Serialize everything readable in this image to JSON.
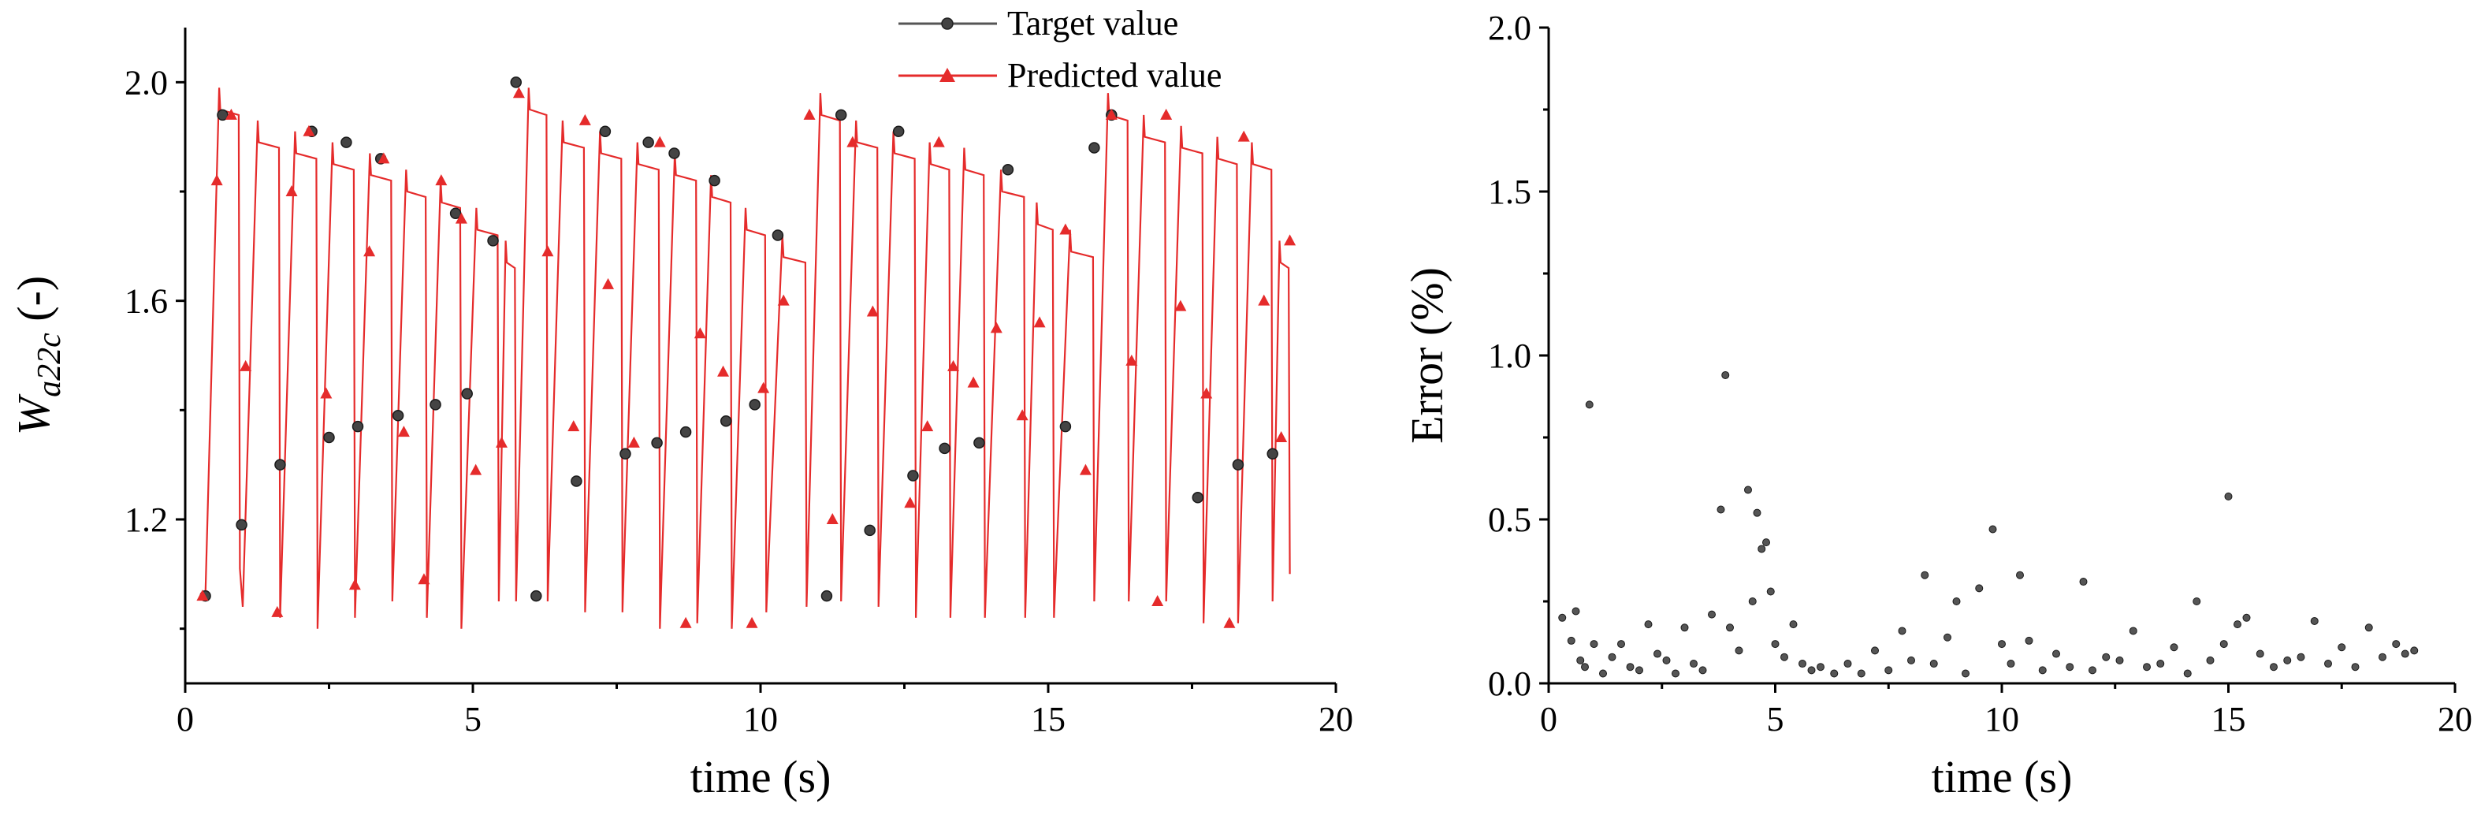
{
  "chart_data": [
    {
      "type": "line",
      "xlabel": "time (s)",
      "ylabel": {
        "base": "W",
        "sub": "a22c",
        "suffix": " (-)"
      },
      "xlim": [
        0,
        20
      ],
      "ylim": [
        0.9,
        2.1
      ],
      "xticks": [
        0,
        5,
        10,
        15,
        20
      ],
      "xtick_labels": [
        "0",
        "5",
        "10",
        "15",
        "20"
      ],
      "yticks": [
        1.2,
        1.6,
        2.0
      ],
      "ytick_labels": [
        "1.2",
        "1.6",
        "2.0"
      ],
      "legend": {
        "position": "top-center",
        "entries": [
          "Target value",
          "Predicted value"
        ]
      },
      "colors": {
        "target": "#555555",
        "predicted": "#e52b2b"
      },
      "cycles": [
        {
          "t0": 0.35,
          "lo": 1.06,
          "hi": 1.99,
          "t1": 0.95
        },
        {
          "t0": 1.0,
          "lo": 1.04,
          "hi": 1.93,
          "t1": 1.65
        },
        {
          "t0": 1.65,
          "lo": 1.02,
          "hi": 1.91,
          "t1": 2.3
        },
        {
          "t0": 2.3,
          "lo": 1.0,
          "hi": 1.89,
          "t1": 2.95
        },
        {
          "t0": 2.95,
          "lo": 1.02,
          "hi": 1.87,
          "t1": 3.6
        },
        {
          "t0": 3.6,
          "lo": 1.05,
          "hi": 1.84,
          "t1": 4.2
        },
        {
          "t0": 4.2,
          "lo": 1.02,
          "hi": 1.82,
          "t1": 4.8
        },
        {
          "t0": 4.8,
          "lo": 1.0,
          "hi": 1.77,
          "t1": 5.45
        },
        {
          "t0": 5.45,
          "lo": 1.05,
          "hi": 1.71,
          "t1": 5.75
        },
        {
          "t0": 5.75,
          "lo": 1.05,
          "hi": 1.99,
          "t1": 6.3
        },
        {
          "t0": 6.3,
          "lo": 1.05,
          "hi": 1.93,
          "t1": 6.95
        },
        {
          "t0": 6.95,
          "lo": 1.03,
          "hi": 1.91,
          "t1": 7.6
        },
        {
          "t0": 7.6,
          "lo": 1.03,
          "hi": 1.89,
          "t1": 8.25
        },
        {
          "t0": 8.25,
          "lo": 1.0,
          "hi": 1.87,
          "t1": 8.9
        },
        {
          "t0": 8.9,
          "lo": 1.01,
          "hi": 1.83,
          "t1": 9.5
        },
        {
          "t0": 9.5,
          "lo": 1.0,
          "hi": 1.77,
          "t1": 10.1
        },
        {
          "t0": 10.1,
          "lo": 1.03,
          "hi": 1.72,
          "t1": 10.8
        },
        {
          "t0": 10.8,
          "lo": 1.04,
          "hi": 1.98,
          "t1": 11.4
        },
        {
          "t0": 11.4,
          "lo": 1.05,
          "hi": 1.93,
          "t1": 12.05
        },
        {
          "t0": 12.05,
          "lo": 1.04,
          "hi": 1.91,
          "t1": 12.7
        },
        {
          "t0": 12.7,
          "lo": 1.02,
          "hi": 1.89,
          "t1": 13.3
        },
        {
          "t0": 13.3,
          "lo": 1.02,
          "hi": 1.88,
          "t1": 13.9
        },
        {
          "t0": 13.9,
          "lo": 1.02,
          "hi": 1.84,
          "t1": 14.6
        },
        {
          "t0": 14.6,
          "lo": 1.02,
          "hi": 1.78,
          "t1": 15.1
        },
        {
          "t0": 15.1,
          "lo": 1.02,
          "hi": 1.73,
          "t1": 15.8
        },
        {
          "t0": 15.8,
          "lo": 1.05,
          "hi": 1.98,
          "t1": 16.4
        },
        {
          "t0": 16.4,
          "lo": 1.05,
          "hi": 1.94,
          "t1": 17.05
        },
        {
          "t0": 17.05,
          "lo": 1.05,
          "hi": 1.92,
          "t1": 17.7
        },
        {
          "t0": 17.7,
          "lo": 1.01,
          "hi": 1.9,
          "t1": 18.3
        },
        {
          "t0": 18.3,
          "lo": 1.01,
          "hi": 1.89,
          "t1": 18.9
        },
        {
          "t0": 18.9,
          "lo": 1.05,
          "hi": 1.71,
          "t1": 19.2
        }
      ],
      "target_points": [
        [
          0.35,
          1.06
        ],
        [
          0.65,
          1.94
        ],
        [
          0.98,
          1.19
        ],
        [
          1.65,
          1.3
        ],
        [
          2.2,
          1.91
        ],
        [
          2.5,
          1.35
        ],
        [
          2.8,
          1.89
        ],
        [
          3.0,
          1.37
        ],
        [
          3.4,
          1.86
        ],
        [
          3.7,
          1.39
        ],
        [
          4.35,
          1.41
        ],
        [
          4.7,
          1.76
        ],
        [
          4.9,
          1.43
        ],
        [
          5.35,
          1.71
        ],
        [
          5.75,
          2.0
        ],
        [
          6.1,
          1.06
        ],
        [
          6.8,
          1.27
        ],
        [
          7.3,
          1.91
        ],
        [
          7.65,
          1.32
        ],
        [
          8.05,
          1.89
        ],
        [
          8.2,
          1.34
        ],
        [
          8.5,
          1.87
        ],
        [
          8.7,
          1.36
        ],
        [
          9.2,
          1.82
        ],
        [
          9.4,
          1.38
        ],
        [
          9.9,
          1.41
        ],
        [
          10.3,
          1.72
        ],
        [
          11.15,
          1.06
        ],
        [
          11.4,
          1.94
        ],
        [
          11.9,
          1.18
        ],
        [
          12.4,
          1.91
        ],
        [
          12.65,
          1.28
        ],
        [
          13.2,
          1.33
        ],
        [
          13.8,
          1.34
        ],
        [
          14.3,
          1.84
        ],
        [
          15.3,
          1.37
        ],
        [
          15.8,
          1.88
        ],
        [
          16.1,
          1.94
        ],
        [
          17.6,
          1.24
        ],
        [
          18.3,
          1.3
        ],
        [
          18.9,
          1.32
        ]
      ],
      "predicted_points": [
        [
          0.3,
          1.06
        ],
        [
          0.55,
          1.82
        ],
        [
          0.8,
          1.94
        ],
        [
          1.05,
          1.48
        ],
        [
          1.6,
          1.03
        ],
        [
          1.85,
          1.8
        ],
        [
          2.15,
          1.91
        ],
        [
          2.45,
          1.43
        ],
        [
          2.95,
          1.08
        ],
        [
          3.2,
          1.69
        ],
        [
          3.45,
          1.86
        ],
        [
          3.8,
          1.36
        ],
        [
          4.15,
          1.09
        ],
        [
          4.45,
          1.82
        ],
        [
          4.8,
          1.75
        ],
        [
          5.05,
          1.29
        ],
        [
          5.5,
          1.34
        ],
        [
          5.8,
          1.98
        ],
        [
          6.3,
          1.69
        ],
        [
          6.75,
          1.37
        ],
        [
          6.95,
          1.93
        ],
        [
          7.35,
          1.63
        ],
        [
          7.8,
          1.34
        ],
        [
          8.25,
          1.89
        ],
        [
          8.7,
          1.01
        ],
        [
          8.95,
          1.54
        ],
        [
          9.35,
          1.47
        ],
        [
          9.85,
          1.01
        ],
        [
          10.05,
          1.44
        ],
        [
          10.4,
          1.6
        ],
        [
          10.85,
          1.94
        ],
        [
          11.25,
          1.2
        ],
        [
          11.6,
          1.89
        ],
        [
          11.95,
          1.58
        ],
        [
          12.6,
          1.23
        ],
        [
          12.9,
          1.37
        ],
        [
          13.1,
          1.89
        ],
        [
          13.35,
          1.48
        ],
        [
          13.7,
          1.45
        ],
        [
          14.1,
          1.55
        ],
        [
          14.55,
          1.39
        ],
        [
          14.85,
          1.56
        ],
        [
          15.3,
          1.73
        ],
        [
          15.65,
          1.29
        ],
        [
          16.1,
          1.94
        ],
        [
          16.45,
          1.49
        ],
        [
          16.9,
          1.05
        ],
        [
          17.05,
          1.94
        ],
        [
          17.3,
          1.59
        ],
        [
          17.75,
          1.43
        ],
        [
          18.15,
          1.01
        ],
        [
          18.4,
          1.9
        ],
        [
          18.75,
          1.6
        ],
        [
          19.05,
          1.35
        ],
        [
          19.2,
          1.71
        ]
      ]
    },
    {
      "type": "scatter",
      "xlabel": "time (s)",
      "ylabel": "Error (%)",
      "xlim": [
        0,
        20
      ],
      "ylim": [
        0,
        2
      ],
      "xticks": [
        0,
        5,
        10,
        15,
        20
      ],
      "xtick_labels": [
        "0",
        "5",
        "10",
        "15",
        "20"
      ],
      "yticks": [
        0,
        0.5,
        1.0,
        1.5,
        2.0
      ],
      "ytick_labels": [
        "0.0",
        "0.5",
        "1.0",
        "1.5",
        "2.0"
      ],
      "points": [
        [
          0.3,
          0.2
        ],
        [
          0.5,
          0.13
        ],
        [
          0.6,
          0.22
        ],
        [
          0.7,
          0.07
        ],
        [
          0.8,
          0.05
        ],
        [
          0.9,
          0.85
        ],
        [
          1.0,
          0.12
        ],
        [
          1.2,
          0.03
        ],
        [
          1.4,
          0.08
        ],
        [
          1.6,
          0.12
        ],
        [
          1.8,
          0.05
        ],
        [
          2.0,
          0.04
        ],
        [
          2.2,
          0.18
        ],
        [
          2.4,
          0.09
        ],
        [
          2.6,
          0.07
        ],
        [
          2.8,
          0.03
        ],
        [
          3.0,
          0.17
        ],
        [
          3.2,
          0.06
        ],
        [
          3.4,
          0.04
        ],
        [
          3.6,
          0.21
        ],
        [
          3.8,
          0.53
        ],
        [
          3.9,
          0.94
        ],
        [
          4.0,
          0.17
        ],
        [
          4.2,
          0.1
        ],
        [
          4.4,
          0.59
        ],
        [
          4.5,
          0.25
        ],
        [
          4.6,
          0.52
        ],
        [
          4.7,
          0.41
        ],
        [
          4.8,
          0.43
        ],
        [
          4.9,
          0.28
        ],
        [
          5.0,
          0.12
        ],
        [
          5.2,
          0.08
        ],
        [
          5.4,
          0.18
        ],
        [
          5.6,
          0.06
        ],
        [
          5.8,
          0.04
        ],
        [
          6.0,
          0.05
        ],
        [
          6.3,
          0.03
        ],
        [
          6.6,
          0.06
        ],
        [
          6.9,
          0.03
        ],
        [
          7.2,
          0.1
        ],
        [
          7.5,
          0.04
        ],
        [
          7.8,
          0.16
        ],
        [
          8.0,
          0.07
        ],
        [
          8.3,
          0.33
        ],
        [
          8.5,
          0.06
        ],
        [
          8.8,
          0.14
        ],
        [
          9.0,
          0.25
        ],
        [
          9.2,
          0.03
        ],
        [
          9.5,
          0.29
        ],
        [
          9.8,
          0.47
        ],
        [
          10.0,
          0.12
        ],
        [
          10.2,
          0.06
        ],
        [
          10.4,
          0.33
        ],
        [
          10.6,
          0.13
        ],
        [
          10.9,
          0.04
        ],
        [
          11.2,
          0.09
        ],
        [
          11.5,
          0.05
        ],
        [
          11.8,
          0.31
        ],
        [
          12.0,
          0.04
        ],
        [
          12.3,
          0.08
        ],
        [
          12.6,
          0.07
        ],
        [
          12.9,
          0.16
        ],
        [
          13.2,
          0.05
        ],
        [
          13.5,
          0.06
        ],
        [
          13.8,
          0.11
        ],
        [
          14.1,
          0.03
        ],
        [
          14.3,
          0.25
        ],
        [
          14.6,
          0.07
        ],
        [
          14.9,
          0.12
        ],
        [
          15.0,
          0.57
        ],
        [
          15.2,
          0.18
        ],
        [
          15.4,
          0.2
        ],
        [
          15.7,
          0.09
        ],
        [
          16.0,
          0.05
        ],
        [
          16.3,
          0.07
        ],
        [
          16.6,
          0.08
        ],
        [
          16.9,
          0.19
        ],
        [
          17.2,
          0.06
        ],
        [
          17.5,
          0.11
        ],
        [
          17.8,
          0.05
        ],
        [
          18.1,
          0.17
        ],
        [
          18.4,
          0.08
        ],
        [
          18.7,
          0.12
        ],
        [
          18.9,
          0.09
        ],
        [
          19.1,
          0.1
        ]
      ]
    }
  ]
}
